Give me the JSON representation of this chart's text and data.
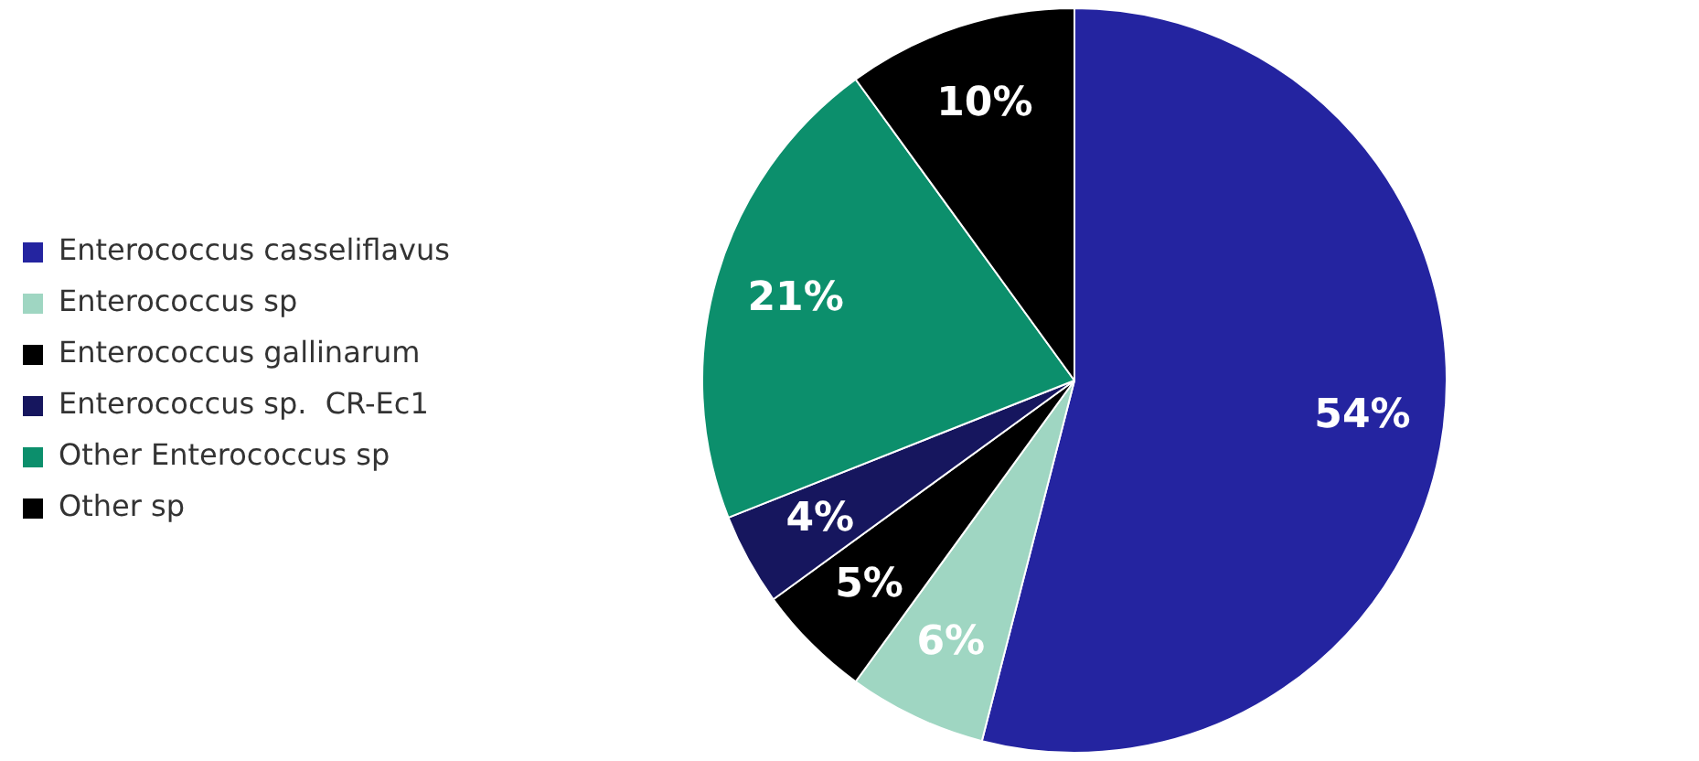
{
  "chart_data": {
    "type": "pie",
    "categories": [
      "Enterococcus casseliflavus",
      "Enterococcus sp",
      "Enterococcus gallinarum",
      "Enterococcus sp.  CR-Ec1",
      "Other Enterococcus sp",
      "Other sp"
    ],
    "values": [
      54,
      6,
      5,
      4,
      21,
      10
    ],
    "colors": [
      "#2424a0",
      "#9fd6c2",
      "#000000",
      "#16165e",
      "#0c8f6c",
      "#000000"
    ],
    "value_labels": [
      "54%",
      "6%",
      "5%",
      "4%",
      "21%",
      "10%"
    ],
    "legend": "left"
  }
}
